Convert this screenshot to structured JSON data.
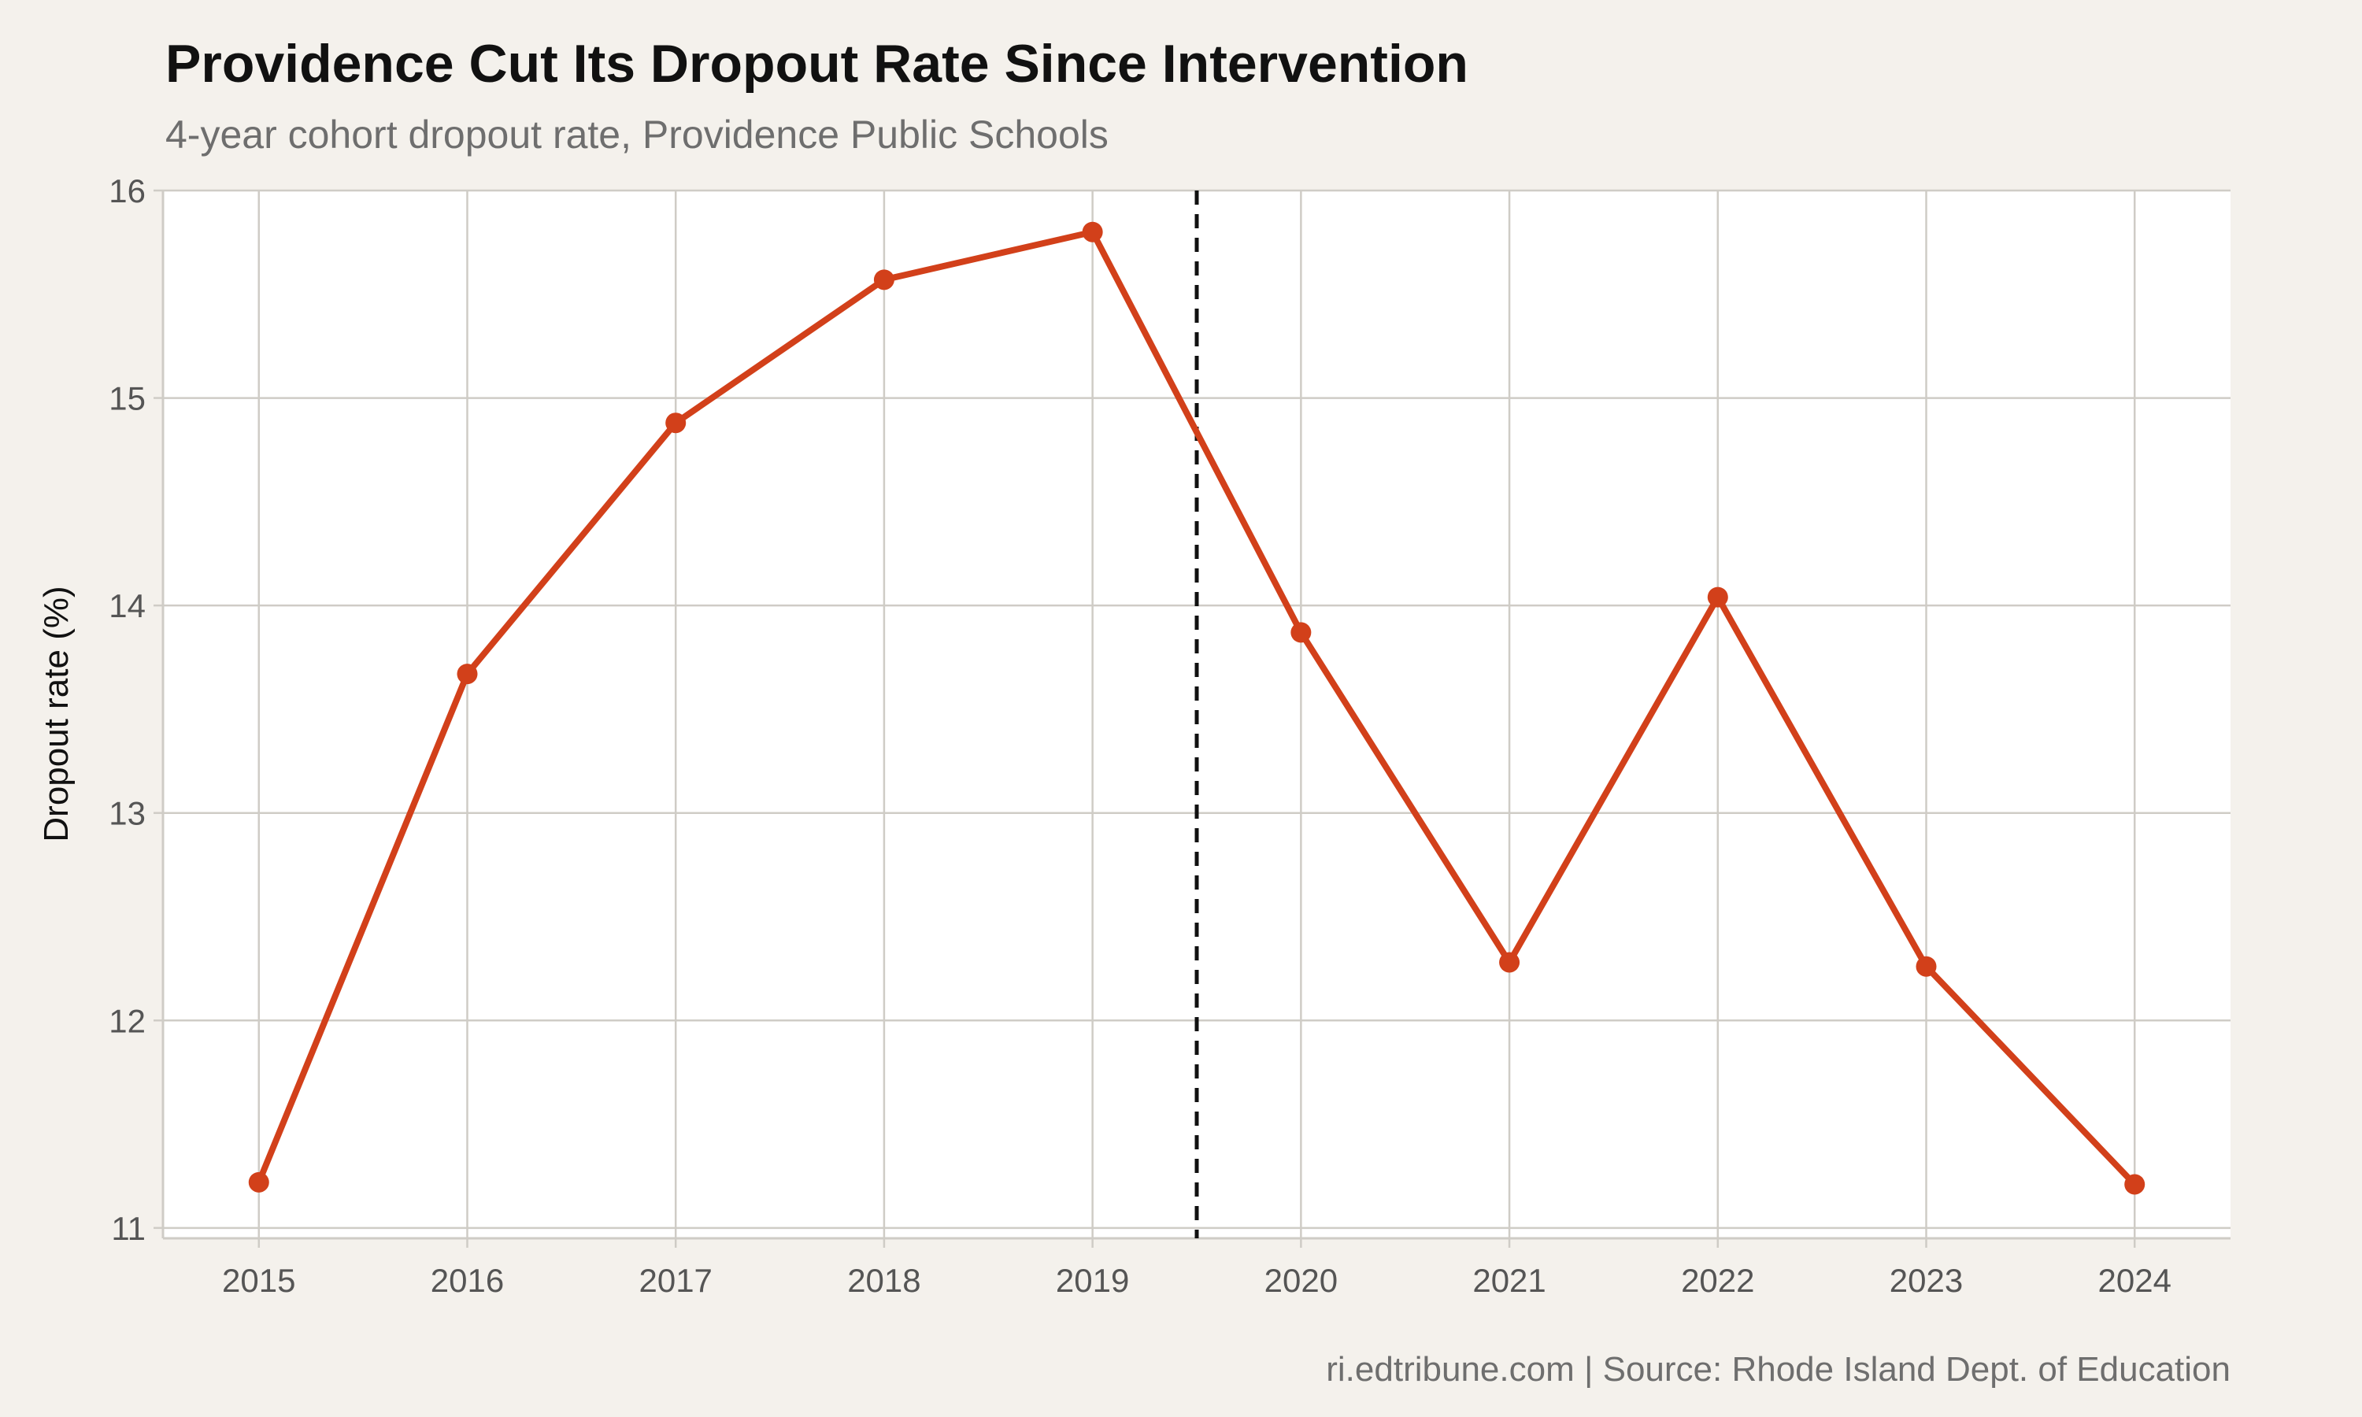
{
  "chart_data": {
    "type": "line",
    "title": "Providence Cut Its Dropout Rate Since Intervention",
    "subtitle": "4-year cohort dropout rate, Providence Public Schools",
    "caption": "ri.edtribune.com | Source: Rhode Island Dept. of Education",
    "xlabel": "",
    "ylabel": "Dropout rate (%)",
    "x": [
      2015,
      2016,
      2017,
      2018,
      2019,
      2020,
      2021,
      2022,
      2023,
      2024
    ],
    "series": [
      {
        "values": [
          11.22,
          13.67,
          14.88,
          15.57,
          15.8,
          13.87,
          12.28,
          14.04,
          12.26,
          11.21
        ]
      }
    ],
    "xlim": [
      2014.54,
      2024.46
    ],
    "ylim": [
      10.95,
      16.0
    ],
    "yticks": [
      11,
      12,
      13,
      14,
      15,
      16
    ],
    "xticks": [
      2015,
      2016,
      2017,
      2018,
      2019,
      2020,
      2021,
      2022,
      2023,
      2024
    ],
    "reference_line": {
      "x": 2019.5,
      "style": "dashed"
    },
    "grid": true,
    "colors": {
      "line": "#d2401a",
      "reference": "#111111",
      "grid": "#cfccc6",
      "panel": "#ffffff",
      "background": "#f4f1ec"
    }
  }
}
